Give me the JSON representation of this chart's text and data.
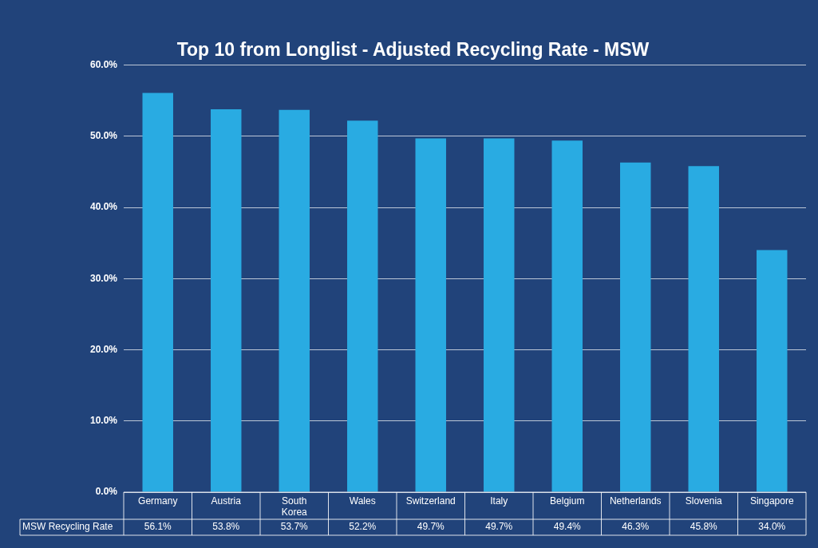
{
  "chart_data": {
    "type": "bar",
    "title": "Top 10 from Longlist - Adjusted Recycling Rate - MSW",
    "categories": [
      "Germany",
      "Austria",
      "South Korea",
      "Wales",
      "Switzerland",
      "Italy",
      "Belgium",
      "Netherlands",
      "Slovenia",
      "Singapore"
    ],
    "series": [
      {
        "name": "MSW Recycling Rate",
        "color": "#29abe2",
        "values": [
          56.1,
          53.8,
          53.7,
          52.2,
          49.7,
          49.7,
          49.4,
          46.3,
          45.8,
          34.0
        ],
        "value_labels": [
          "56.1%",
          "53.8%",
          "53.7%",
          "52.2%",
          "49.7%",
          "49.7%",
          "49.4%",
          "46.3%",
          "45.8%",
          "34.0%"
        ]
      }
    ],
    "ylim": [
      0,
      60
    ],
    "yticks": [
      {
        "value": 0,
        "label": "0.0%"
      },
      {
        "value": 10,
        "label": "10.0%"
      },
      {
        "value": 20,
        "label": "20.0%"
      },
      {
        "value": 30,
        "label": "30.0%"
      },
      {
        "value": 40,
        "label": "40.0%"
      },
      {
        "value": 50,
        "label": "50.0%"
      },
      {
        "value": 60,
        "label": "60.0%"
      }
    ],
    "grid": "y",
    "legend": false
  }
}
